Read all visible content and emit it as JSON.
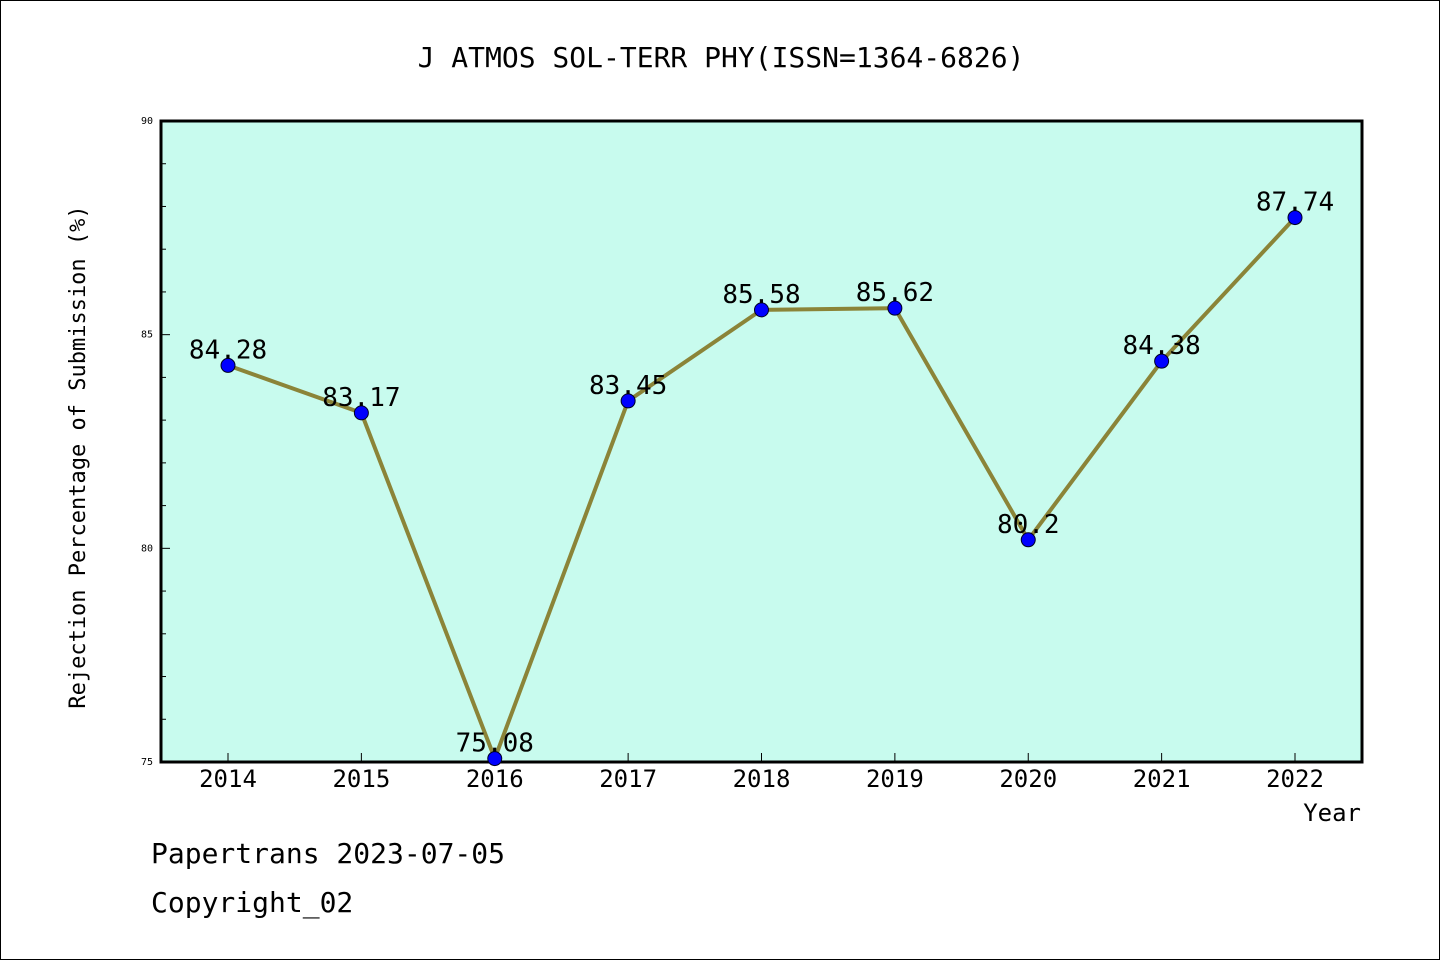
{
  "chart_data": {
    "type": "line",
    "title": "J ATMOS SOL-TERR PHY(ISSN=1364-6826)",
    "xlabel": "Year",
    "ylabel": "Rejection Percentage of Submission (%)",
    "categories": [
      "2014",
      "2015",
      "2016",
      "2017",
      "2018",
      "2019",
      "2020",
      "2021",
      "2022"
    ],
    "values": [
      84.28,
      83.17,
      75.08,
      83.45,
      85.58,
      85.62,
      80.2,
      84.38,
      87.74
    ],
    "data_labels": [
      "84.28",
      "83.17",
      "75.08",
      "83.45",
      "85.58",
      "85.62",
      "80.2",
      "84.38",
      "87.74"
    ],
    "ylim": [
      75,
      90
    ],
    "yticks": [
      "75",
      "80",
      "85",
      "90"
    ],
    "grid": false,
    "colors": {
      "plot_background": "#c8fbee",
      "line": "#8b8438",
      "marker": "#0000ff"
    }
  },
  "footer": {
    "line1": "Papertrans 2023-07-05",
    "line2": "Copyright_02"
  }
}
